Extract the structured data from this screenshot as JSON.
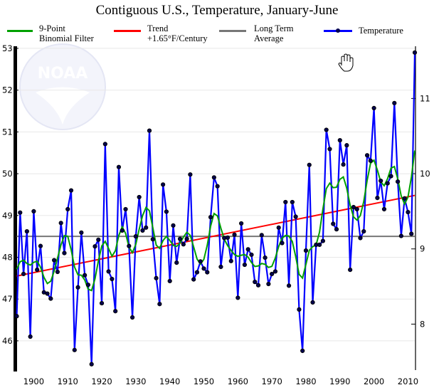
{
  "chart_data": {
    "type": "line",
    "title": "Contiguous U.S., Temperature, January-June",
    "legend": [
      {
        "label_line1": "9-Point",
        "label_line2": "Binomial Filter",
        "color": "#00a000"
      },
      {
        "label_line1": "Trend",
        "label_line2": "+1.65°F/Century",
        "color": "#ff0000"
      },
      {
        "label_line1": "Long Term",
        "label_line2": "Average",
        "color": "#777777"
      },
      {
        "label_line1": "Temperature",
        "label_line2": "",
        "color": "#0000ff"
      }
    ],
    "legend_placement": "top",
    "x": [
      1895,
      1896,
      1897,
      1898,
      1899,
      1900,
      1901,
      1902,
      1903,
      1904,
      1905,
      1906,
      1907,
      1908,
      1909,
      1910,
      1911,
      1912,
      1913,
      1914,
      1915,
      1916,
      1917,
      1918,
      1919,
      1920,
      1921,
      1922,
      1923,
      1924,
      1925,
      1926,
      1927,
      1928,
      1929,
      1930,
      1931,
      1932,
      1933,
      1934,
      1935,
      1936,
      1937,
      1938,
      1939,
      1940,
      1941,
      1942,
      1943,
      1944,
      1945,
      1946,
      1947,
      1948,
      1949,
      1950,
      1951,
      1952,
      1953,
      1954,
      1955,
      1956,
      1957,
      1958,
      1959,
      1960,
      1961,
      1962,
      1963,
      1964,
      1965,
      1966,
      1967,
      1968,
      1969,
      1970,
      1971,
      1972,
      1973,
      1974,
      1975,
      1976,
      1977,
      1978,
      1979,
      1980,
      1981,
      1982,
      1983,
      1984,
      1985,
      1986,
      1987,
      1988,
      1989,
      1990,
      1991,
      1992,
      1993,
      1994,
      1995,
      1996,
      1997,
      1998,
      1999,
      2000,
      2001,
      2002,
      2003,
      2004,
      2005,
      2006,
      2007,
      2008,
      2009,
      2010,
      2011,
      2012
    ],
    "series": [
      {
        "name": "Temperature",
        "values": [
          46.59,
          49.07,
          47.6,
          48.62,
          46.1,
          49.1,
          47.7,
          48.27,
          47.16,
          47.13,
          47.01,
          47.93,
          47.65,
          48.82,
          48.1,
          49.15,
          49.6,
          45.78,
          47.28,
          48.59,
          47.57,
          47.34,
          45.44,
          48.26,
          48.42,
          46.9,
          50.71,
          47.66,
          47.48,
          46.71,
          50.16,
          48.64,
          49.15,
          48.27,
          46.56,
          48.5,
          49.44,
          48.64,
          48.71,
          51.03,
          48.43,
          47.5,
          46.88,
          49.74,
          49.09,
          47.43,
          48.76,
          47.87,
          48.44,
          48.31,
          48.44,
          49.98,
          47.47,
          47.64,
          47.9,
          47.73,
          47.64,
          48.96,
          49.91,
          49.7,
          47.77,
          48.46,
          48.47,
          47.91,
          48.54,
          47.03,
          48.81,
          47.82,
          48.19,
          48.06,
          47.41,
          47.33,
          48.53,
          47.99,
          47.36,
          47.6,
          47.66,
          48.71,
          48.34,
          49.32,
          47.32,
          49.32,
          48.97,
          46.75,
          45.76,
          48.16,
          50.21,
          46.92,
          48.3,
          48.3,
          48.39,
          51.05,
          50.59,
          48.8,
          48.67,
          50.8,
          50.22,
          50.68,
          47.7,
          49.2,
          49.15,
          48.46,
          48.62,
          50.44,
          50.31,
          51.57,
          49.42,
          49.83,
          49.15,
          49.77,
          49.94,
          51.69,
          49.81,
          48.51,
          49.41,
          49.08,
          48.56,
          52.9
        ]
      }
    ],
    "trend": {
      "rate_per_century": 1.65,
      "start": 47.55
    },
    "long_term_average": 48.5,
    "filter": "9-point binomial",
    "ylim": [
      45.3,
      53.05
    ],
    "xlim": [
      1895,
      2012
    ],
    "y_ticks_left_F": [
      "46",
      "47",
      "48",
      "49",
      "50",
      "51",
      "52",
      "53"
    ],
    "y_ticks_right_C": [
      "8",
      "9",
      "10",
      "11"
    ],
    "x_ticks": [
      "1900",
      "1910",
      "1920",
      "1930",
      "1940",
      "1950",
      "1960",
      "1970",
      "1980",
      "1990",
      "2000",
      "2010"
    ],
    "grid": true,
    "watermark": "NOAA"
  }
}
